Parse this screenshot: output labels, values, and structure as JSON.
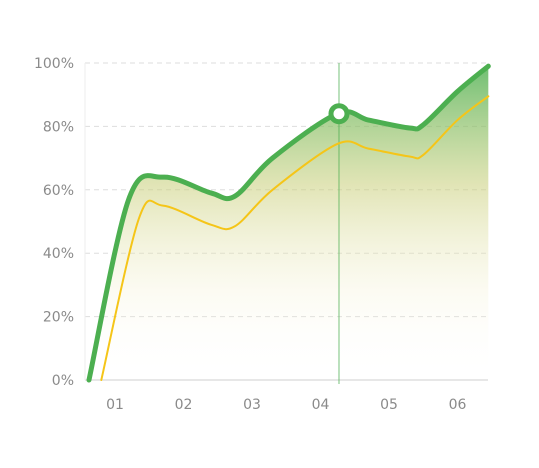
{
  "chart_data": {
    "type": "area",
    "title": "",
    "xlabel": "",
    "ylabel": "",
    "categories": [
      "01",
      "02",
      "03",
      "04",
      "05",
      "06"
    ],
    "y_ticks": [
      "0%",
      "20%",
      "40%",
      "60%",
      "80%",
      "100%"
    ],
    "ylim": [
      0,
      100
    ],
    "grid": true,
    "grid_style": "dashed",
    "legend": "none",
    "series": [
      {
        "color": "#4caf50",
        "style": "thick line with green gradient area fill",
        "x": [
          0.62,
          1.2,
          1.7,
          2.4,
          2.75,
          3.3,
          4.25,
          4.7,
          5.3,
          5.5,
          6.0,
          6.45
        ],
        "values": [
          0,
          57,
          64,
          59,
          58,
          70,
          84,
          82,
          79.5,
          80.5,
          91,
          99
        ]
      },
      {
        "color": "#f5c518",
        "style": "thin line",
        "x": [
          0.8,
          1.35,
          1.7,
          2.4,
          2.75,
          3.3,
          4.25,
          4.7,
          5.3,
          5.5,
          6.0,
          6.45
        ],
        "values": [
          0,
          51,
          55,
          49,
          48.5,
          60,
          74.5,
          73,
          70.5,
          71,
          82,
          89.5
        ]
      }
    ],
    "highlight": {
      "x": 4.27,
      "value": 84,
      "marker": "ring",
      "vertical_line": true,
      "color": "#4caf50"
    },
    "colors": {
      "accent": "#4caf50",
      "secondary": "#f5c518",
      "grid": "#dddddd",
      "axis": "#cfcfcf",
      "tick_text": "#8a8a8a"
    }
  }
}
